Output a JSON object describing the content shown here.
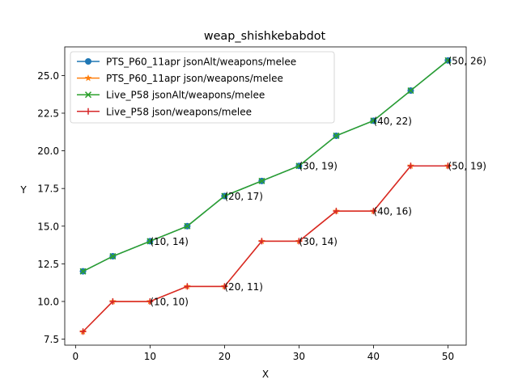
{
  "chart_data": {
    "type": "line",
    "title": "weap_shishkebabdot",
    "xlabel": "X",
    "ylabel": "Y",
    "xlim": [
      -1.45,
      52.45
    ],
    "ylim": [
      7.1,
      26.9
    ],
    "xticks": [
      0,
      10,
      20,
      30,
      40,
      50
    ],
    "yticks": [
      7.5,
      10.0,
      12.5,
      15.0,
      17.5,
      20.0,
      22.5,
      25.0
    ],
    "grid": false,
    "legend_position": "top-left",
    "x": [
      1,
      5,
      10,
      15,
      20,
      25,
      30,
      35,
      40,
      45,
      50
    ],
    "series": [
      {
        "name": "PTS_P60_11apr jsonAlt/weapons/melee",
        "color": "#1f77b4",
        "marker": "circle",
        "values": [
          12,
          13,
          14,
          15,
          17,
          18,
          19,
          21,
          22,
          24,
          26
        ]
      },
      {
        "name": "PTS_P60_11apr json/weapons/melee",
        "color": "#ff7f0e",
        "marker": "star",
        "values": [
          8,
          10,
          10,
          11,
          11,
          14,
          14,
          16,
          16,
          19,
          19
        ]
      },
      {
        "name": "Live_P58 jsonAlt/weapons/melee",
        "color": "#2ca02c",
        "marker": "x",
        "values": [
          12,
          13,
          14,
          15,
          17,
          18,
          19,
          21,
          22,
          24,
          26
        ]
      },
      {
        "name": "Live_P58 json/weapons/melee",
        "color": "#d62728",
        "marker": "plus",
        "values": [
          8,
          10,
          10,
          11,
          11,
          14,
          14,
          16,
          16,
          19,
          19
        ]
      }
    ],
    "annotations": [
      {
        "text": "(10, 14)",
        "x": 10,
        "y": 14
      },
      {
        "text": "(20, 17)",
        "x": 20,
        "y": 17
      },
      {
        "text": "(30, 19)",
        "x": 30,
        "y": 19
      },
      {
        "text": "(40, 22)",
        "x": 40,
        "y": 22
      },
      {
        "text": "(50, 26)",
        "x": 50,
        "y": 26
      },
      {
        "text": "(10, 10)",
        "x": 10,
        "y": 10
      },
      {
        "text": "(20, 11)",
        "x": 20,
        "y": 11
      },
      {
        "text": "(30, 14)",
        "x": 30,
        "y": 14
      },
      {
        "text": "(40, 16)",
        "x": 40,
        "y": 16
      },
      {
        "text": "(50, 19)",
        "x": 50,
        "y": 19
      }
    ]
  }
}
